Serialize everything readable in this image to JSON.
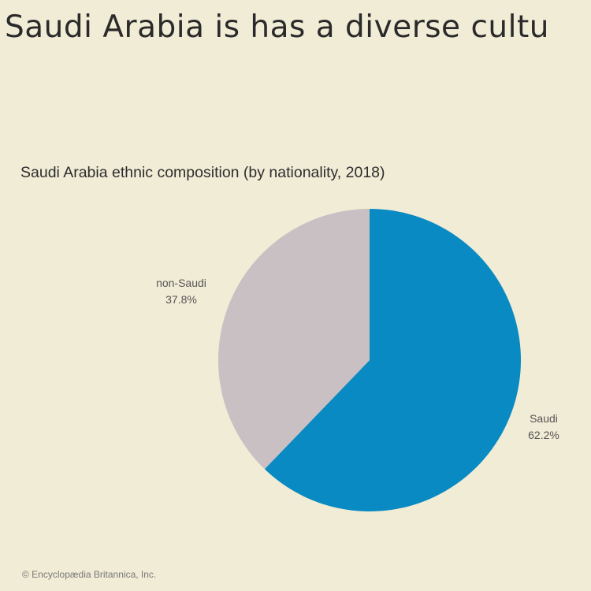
{
  "headline": "Saudi Arabia is has a diverse cultu",
  "credit": "© Encyclopædia Britannica, Inc.",
  "chart_data": {
    "type": "pie",
    "title": "Saudi Arabia ethnic composition (by nationality, 2018)",
    "categories": [
      "Saudi",
      "non-Saudi"
    ],
    "values": [
      62.2,
      37.8
    ],
    "value_labels": [
      "62.2%",
      "37.8%"
    ],
    "colors": [
      "#0a8ac2",
      "#c9c0c3"
    ],
    "start": "12 o'clock",
    "direction": "clockwise",
    "legend": "none"
  }
}
